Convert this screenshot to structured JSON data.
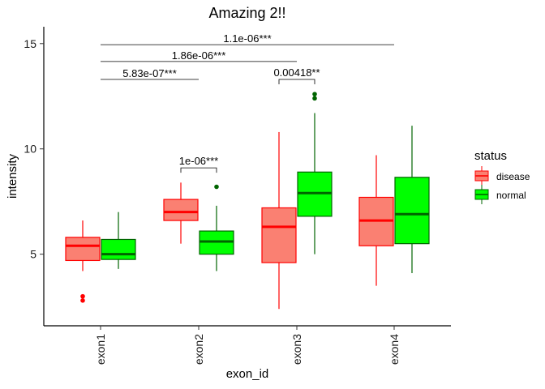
{
  "chart_data": {
    "type": "boxplot",
    "title": "Amazing 2!!",
    "xlabel": "exon_id",
    "ylabel": "intensity",
    "ylim": [
      1.6,
      15.8
    ],
    "yticks": [
      5,
      10,
      15
    ],
    "categories": [
      "exon1",
      "exon2",
      "exon3",
      "exon4"
    ],
    "grid": false,
    "legend": {
      "title": "status",
      "position": "right",
      "items": [
        {
          "label": "disease",
          "fill": "#FA8072",
          "line": "#FF0000"
        },
        {
          "label": "normal",
          "fill": "#00FF00",
          "line": "#006400"
        }
      ]
    },
    "series": [
      {
        "name": "disease",
        "fill": "#FA8072",
        "line": "#FF0000",
        "boxes": [
          {
            "category": "exon1",
            "lower_whisker": 4.2,
            "q1": 4.7,
            "median": 5.4,
            "q3": 5.8,
            "upper_whisker": 6.6,
            "outliers": [
              3.0,
              2.8
            ]
          },
          {
            "category": "exon2",
            "lower_whisker": 5.5,
            "q1": 6.6,
            "median": 7.0,
            "q3": 7.6,
            "upper_whisker": 8.4,
            "outliers": []
          },
          {
            "category": "exon3",
            "lower_whisker": 2.4,
            "q1": 4.6,
            "median": 6.3,
            "q3": 7.2,
            "upper_whisker": 10.8,
            "outliers": []
          },
          {
            "category": "exon4",
            "lower_whisker": 3.5,
            "q1": 5.4,
            "median": 6.6,
            "q3": 7.7,
            "upper_whisker": 9.7,
            "outliers": []
          }
        ]
      },
      {
        "name": "normal",
        "fill": "#00FF00",
        "line": "#006400",
        "boxes": [
          {
            "category": "exon1",
            "lower_whisker": 4.3,
            "q1": 4.75,
            "median": 5.0,
            "q3": 5.7,
            "upper_whisker": 7.0,
            "outliers": []
          },
          {
            "category": "exon2",
            "lower_whisker": 4.2,
            "q1": 5.0,
            "median": 5.6,
            "q3": 6.1,
            "upper_whisker": 7.3,
            "outliers": [
              8.2
            ]
          },
          {
            "category": "exon3",
            "lower_whisker": 5.0,
            "q1": 6.8,
            "median": 7.9,
            "q3": 8.9,
            "upper_whisker": 11.7,
            "outliers": [
              12.6,
              12.4
            ]
          },
          {
            "category": "exon4",
            "lower_whisker": 4.1,
            "q1": 5.5,
            "median": 6.9,
            "q3": 8.65,
            "upper_whisker": 11.1,
            "outliers": []
          }
        ]
      }
    ],
    "annotations": [
      {
        "label": "1.1e-06***",
        "from": "exon1",
        "to": "exon4",
        "y": 14.95,
        "style": "line"
      },
      {
        "label": "1.86e-06***",
        "from": "exon1",
        "to": "exon3",
        "y": 14.15,
        "style": "line"
      },
      {
        "label": "5.83e-07***",
        "from": "exon1",
        "to": "exon2",
        "y": 13.3,
        "style": "line"
      },
      {
        "label": "0.00418**",
        "category": "exon3",
        "y": 13.3,
        "style": "bracket"
      },
      {
        "label": "1e-06***",
        "category": "exon2",
        "y": 9.1,
        "style": "bracket"
      }
    ]
  }
}
